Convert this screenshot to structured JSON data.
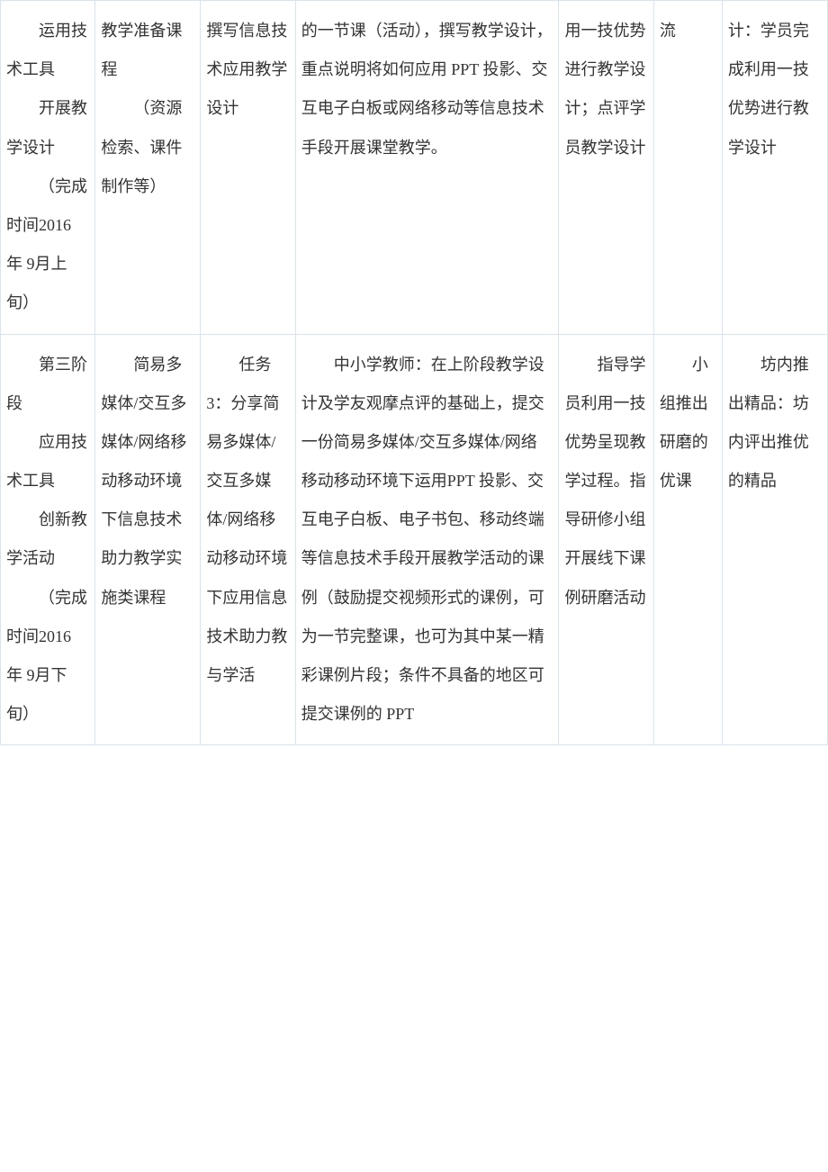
{
  "table": {
    "border_color": "#d8e4ee",
    "text_color": "#333333",
    "font_size": 18,
    "rows": [
      {
        "c1_p1": "运用技术工具",
        "c1_p2": "开展教学设计",
        "c1_p3": "（完成时间2016 年 9月上旬）",
        "c2_p1": "教学准备课程",
        "c2_p2": "（资源检索、课件制作等）",
        "c3_p1": "撰写信息技术应用教学设计",
        "c4_p1": "的一节课（活动），撰写教学设计，重点说明将如何应用 PPT 投影、交互电子白板或网络移动等信息技术手段开展课堂教学。",
        "c5_p1": "用一技优势进行教学设计；点评学员教学设计",
        "c6_p1": "流",
        "c7_p1": "计：学员完成利用一技优势进行教学设计"
      },
      {
        "c1_p1": "第三阶段",
        "c1_p2": "应用技术工具",
        "c1_p3": "创新教学活动",
        "c1_p4": "（完成时间2016 年 9月下旬）",
        "c2_p1": "简易多媒体/交互多媒体/网络移动移动环境下信息技术助力教学实施类课程",
        "c3_p1": "任务 3：分享简易多媒体/交互多媒体/网络移动移动环境下应用信息技术助力教与学活",
        "c4_p1": "中小学教师：在上阶段教学设计及学友观摩点评的基础上，提交一份简易多媒体/交互多媒体/网络移动移动环境下运用PPT 投影、交互电子白板、电子书包、移动终端等信息技术手段开展教学活动的课例（鼓励提交视频形式的课例，可为一节完整课，也可为其中某一精彩课例片段；条件不具备的地区可提交课例的 PPT",
        "c5_p1": "指导学员利用一技优势呈现教学过程。指导研修小组开展线下课例研磨活动",
        "c6_p1": "小组推出研磨的优课",
        "c7_p1": "坊内推出精品：坊内评出推优的精品"
      }
    ]
  }
}
